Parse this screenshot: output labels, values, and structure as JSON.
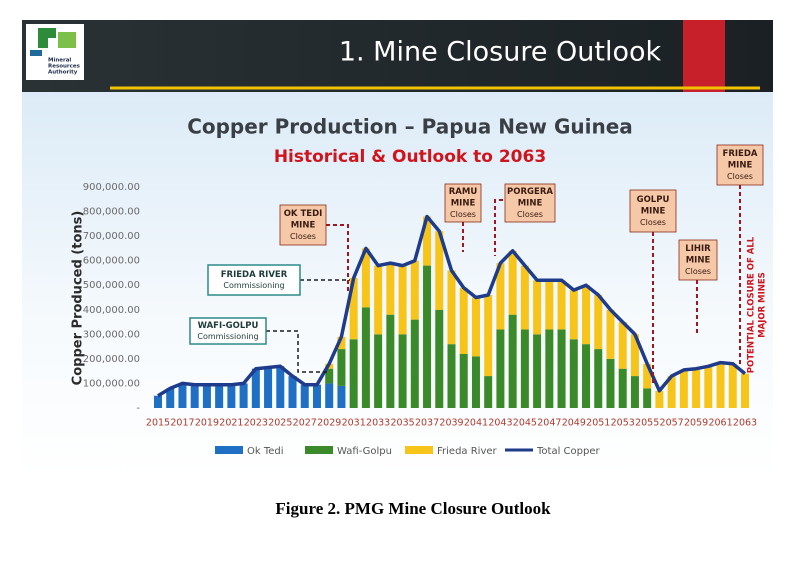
{
  "slide": {
    "title": "1. Mine Closure Outlook",
    "logo": [
      "Mineral",
      "Resources",
      "Authority"
    ]
  },
  "chart_data": {
    "type": "bar",
    "stacked": true,
    "title": "Copper Production – Papua New Guinea",
    "subtitle": "Historical & Outlook to 2063",
    "y_label": "Copper Produced  (tons)",
    "categories": [
      "2015",
      null,
      "2017",
      null,
      "2019",
      null,
      "2021",
      null,
      "2023",
      null,
      "2025",
      null,
      "2027",
      null,
      "2029",
      null,
      "2031",
      null,
      "2033",
      null,
      "2035",
      null,
      "2037",
      null,
      "2039",
      null,
      "2041",
      null,
      "2043",
      null,
      "2045",
      null,
      "2047",
      null,
      "2049",
      null,
      "2051",
      null,
      "2053",
      null,
      "2055",
      null,
      "2057",
      null,
      "2059",
      null,
      "2061",
      null,
      "2063"
    ],
    "series": [
      {
        "name": "Ok Tedi",
        "color": "#1f6fc5",
        "values": [
          50000,
          80000,
          100000,
          95000,
          95000,
          95000,
          95000,
          100000,
          160000,
          165000,
          170000,
          130000,
          95000,
          95000,
          100000,
          90000,
          null,
          null,
          null,
          null,
          null,
          null,
          null,
          null,
          null,
          null,
          null,
          null,
          null,
          null,
          null,
          null,
          null,
          null,
          null,
          null,
          null,
          null,
          null,
          null,
          null,
          null,
          null,
          null,
          null,
          null,
          null,
          null,
          null
        ]
      },
      {
        "name": "Wafi-Golpu",
        "color": "#3a8a2a",
        "values": [
          null,
          null,
          null,
          null,
          null,
          null,
          null,
          null,
          null,
          null,
          null,
          null,
          null,
          null,
          60000,
          150000,
          280000,
          410000,
          300000,
          380000,
          300000,
          360000,
          580000,
          400000,
          260000,
          220000,
          210000,
          130000,
          320000,
          380000,
          320000,
          300000,
          320000,
          320000,
          280000,
          260000,
          240000,
          200000,
          160000,
          130000,
          80000,
          null,
          null,
          null,
          null,
          null,
          null,
          null,
          null
        ]
      },
      {
        "name": "Frieda River",
        "color": "#f7c41a",
        "values": [
          null,
          null,
          null,
          null,
          null,
          null,
          null,
          null,
          null,
          null,
          null,
          null,
          null,
          null,
          20000,
          50000,
          250000,
          240000,
          280000,
          210000,
          280000,
          240000,
          200000,
          320000,
          300000,
          270000,
          240000,
          330000,
          270000,
          260000,
          260000,
          220000,
          200000,
          200000,
          200000,
          240000,
          220000,
          200000,
          190000,
          170000,
          100000,
          70000,
          130000,
          155000,
          160000,
          170000,
          185000,
          180000,
          140000
        ]
      },
      {
        "name": "Total Copper",
        "color": "#1f3b8c",
        "type": "line",
        "values": [
          50000,
          80000,
          100000,
          95000,
          95000,
          95000,
          95000,
          100000,
          160000,
          165000,
          170000,
          130000,
          95000,
          95000,
          180000,
          290000,
          530000,
          650000,
          580000,
          590000,
          580000,
          600000,
          780000,
          720000,
          560000,
          490000,
          450000,
          460000,
          590000,
          640000,
          580000,
          520000,
          520000,
          520000,
          480000,
          500000,
          460000,
          400000,
          350000,
          300000,
          180000,
          70000,
          130000,
          155000,
          160000,
          170000,
          185000,
          180000,
          140000
        ]
      }
    ],
    "ylim": [
      0,
      900000
    ],
    "yticks": [
      {
        "value": 0,
        "label": "-"
      },
      {
        "value": 100000,
        "label": "100,000.00"
      },
      {
        "value": 200000,
        "label": "200,000.00"
      },
      {
        "value": 300000,
        "label": "300,000.00"
      },
      {
        "value": 400000,
        "label": "400,000.00"
      },
      {
        "value": 500000,
        "label": "500,000.00"
      },
      {
        "value": 600000,
        "label": "600,000.00"
      },
      {
        "value": 700000,
        "label": "700,000.00"
      },
      {
        "value": 800000,
        "label": "800,000.00"
      },
      {
        "value": 900000,
        "label": "900,000.00"
      }
    ],
    "legend": "bottom",
    "annotations": [
      {
        "title": [
          "OK TEDI",
          "MINE"
        ],
        "note": "Closes"
      },
      {
        "title": [
          "RAMU",
          "MINE"
        ],
        "note": "Closes"
      },
      {
        "title": [
          "PORGERA",
          "MINE"
        ],
        "note": "Closes"
      },
      {
        "title": [
          "GOLPU",
          "MINE"
        ],
        "note": "Closes"
      },
      {
        "title": [
          "LIHIR",
          "MINE"
        ],
        "note": "Closes"
      },
      {
        "title": [
          "FRIEDA",
          "MINE"
        ],
        "note": "Closes"
      },
      {
        "title": [
          "FRIEDA RIVER"
        ],
        "note": "Commissioning"
      },
      {
        "title": [
          "WAFI-GOLPU"
        ],
        "note": "Commissioning"
      }
    ],
    "side_note": [
      "POTENTIAL CLOSURE OF ALL",
      "MAJOR MINES"
    ]
  },
  "caption": "Figure 2. PMG Mine Closure Outlook"
}
